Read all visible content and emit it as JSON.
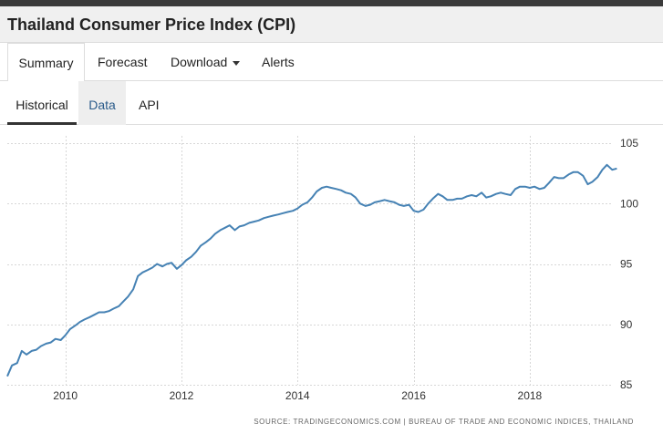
{
  "page": {
    "title": "Thailand Consumer Price Index (CPI)"
  },
  "main_tabs": [
    {
      "label": "Summary",
      "active": true
    },
    {
      "label": "Forecast",
      "active": false
    },
    {
      "label": "Download",
      "active": false,
      "dropdown": true
    },
    {
      "label": "Alerts",
      "active": false
    }
  ],
  "sub_tabs": [
    {
      "label": "Historical",
      "active": true
    },
    {
      "label": "Data",
      "active": false
    },
    {
      "label": "API",
      "active": false
    }
  ],
  "colors": {
    "line": "#4682b4",
    "grid": "#d7d7d7",
    "axis_text": "#333333",
    "source_text": "#666666"
  },
  "chart_data": {
    "type": "line",
    "title": "",
    "xlabel": "",
    "ylabel": "",
    "xlim": [
      2009.0,
      2019.4
    ],
    "ylim": [
      85,
      105
    ],
    "x_ticks": [
      2010,
      2012,
      2014,
      2016,
      2018
    ],
    "x_tick_labels": [
      "2010",
      "2012",
      "2014",
      "2016",
      "2018"
    ],
    "y_ticks": [
      85,
      90,
      95,
      100,
      105
    ],
    "y_tick_labels": [
      "85",
      "90",
      "95",
      "100",
      "105"
    ],
    "legend": "none",
    "source": "SOURCE: TRADINGECONOMICS.COM | BUREAU OF TRADE AND ECONOMIC INDICES, THAILAND",
    "series": [
      {
        "name": "CPI",
        "points": [
          [
            2009.0,
            85.7
          ],
          [
            2009.08,
            86.6
          ],
          [
            2009.17,
            86.8
          ],
          [
            2009.25,
            87.8
          ],
          [
            2009.33,
            87.5
          ],
          [
            2009.42,
            87.8
          ],
          [
            2009.5,
            87.9
          ],
          [
            2009.58,
            88.2
          ],
          [
            2009.67,
            88.4
          ],
          [
            2009.75,
            88.5
          ],
          [
            2009.83,
            88.8
          ],
          [
            2009.92,
            88.7
          ],
          [
            2010.0,
            89.1
          ],
          [
            2010.08,
            89.6
          ],
          [
            2010.17,
            89.9
          ],
          [
            2010.25,
            90.2
          ],
          [
            2010.33,
            90.4
          ],
          [
            2010.42,
            90.6
          ],
          [
            2010.5,
            90.8
          ],
          [
            2010.58,
            91.0
          ],
          [
            2010.67,
            91.0
          ],
          [
            2010.75,
            91.1
          ],
          [
            2010.83,
            91.3
          ],
          [
            2010.92,
            91.5
          ],
          [
            2011.0,
            91.9
          ],
          [
            2011.08,
            92.3
          ],
          [
            2011.17,
            92.9
          ],
          [
            2011.25,
            94.0
          ],
          [
            2011.33,
            94.3
          ],
          [
            2011.42,
            94.5
          ],
          [
            2011.5,
            94.7
          ],
          [
            2011.58,
            95.0
          ],
          [
            2011.67,
            94.8
          ],
          [
            2011.75,
            95.0
          ],
          [
            2011.83,
            95.1
          ],
          [
            2011.92,
            94.6
          ],
          [
            2012.0,
            94.9
          ],
          [
            2012.08,
            95.3
          ],
          [
            2012.17,
            95.6
          ],
          [
            2012.25,
            96.0
          ],
          [
            2012.33,
            96.5
          ],
          [
            2012.42,
            96.8
          ],
          [
            2012.5,
            97.1
          ],
          [
            2012.58,
            97.5
          ],
          [
            2012.67,
            97.8
          ],
          [
            2012.75,
            98.0
          ],
          [
            2012.83,
            98.2
          ],
          [
            2012.92,
            97.8
          ],
          [
            2013.0,
            98.1
          ],
          [
            2013.08,
            98.2
          ],
          [
            2013.17,
            98.4
          ],
          [
            2013.25,
            98.5
          ],
          [
            2013.33,
            98.6
          ],
          [
            2013.42,
            98.8
          ],
          [
            2013.5,
            98.9
          ],
          [
            2013.58,
            99.0
          ],
          [
            2013.67,
            99.1
          ],
          [
            2013.75,
            99.2
          ],
          [
            2013.83,
            99.3
          ],
          [
            2013.92,
            99.4
          ],
          [
            2014.0,
            99.6
          ],
          [
            2014.08,
            99.9
          ],
          [
            2014.17,
            100.1
          ],
          [
            2014.25,
            100.5
          ],
          [
            2014.33,
            101.0
          ],
          [
            2014.42,
            101.3
          ],
          [
            2014.5,
            101.4
          ],
          [
            2014.58,
            101.3
          ],
          [
            2014.67,
            101.2
          ],
          [
            2014.75,
            101.1
          ],
          [
            2014.83,
            100.9
          ],
          [
            2014.92,
            100.8
          ],
          [
            2015.0,
            100.5
          ],
          [
            2015.08,
            100.0
          ],
          [
            2015.17,
            99.8
          ],
          [
            2015.25,
            99.9
          ],
          [
            2015.33,
            100.1
          ],
          [
            2015.42,
            100.2
          ],
          [
            2015.5,
            100.3
          ],
          [
            2015.58,
            100.2
          ],
          [
            2015.67,
            100.1
          ],
          [
            2015.75,
            99.9
          ],
          [
            2015.83,
            99.8
          ],
          [
            2015.92,
            99.9
          ],
          [
            2016.0,
            99.4
          ],
          [
            2016.08,
            99.3
          ],
          [
            2016.17,
            99.5
          ],
          [
            2016.25,
            100.0
          ],
          [
            2016.33,
            100.4
          ],
          [
            2016.42,
            100.8
          ],
          [
            2016.5,
            100.6
          ],
          [
            2016.58,
            100.3
          ],
          [
            2016.67,
            100.3
          ],
          [
            2016.75,
            100.4
          ],
          [
            2016.83,
            100.4
          ],
          [
            2016.92,
            100.6
          ],
          [
            2017.0,
            100.7
          ],
          [
            2017.08,
            100.6
          ],
          [
            2017.17,
            100.9
          ],
          [
            2017.25,
            100.5
          ],
          [
            2017.33,
            100.6
          ],
          [
            2017.42,
            100.8
          ],
          [
            2017.5,
            100.9
          ],
          [
            2017.58,
            100.8
          ],
          [
            2017.67,
            100.7
          ],
          [
            2017.75,
            101.2
          ],
          [
            2017.83,
            101.4
          ],
          [
            2017.92,
            101.4
          ],
          [
            2018.0,
            101.3
          ],
          [
            2018.08,
            101.4
          ],
          [
            2018.17,
            101.2
          ],
          [
            2018.25,
            101.3
          ],
          [
            2018.33,
            101.7
          ],
          [
            2018.42,
            102.2
          ],
          [
            2018.5,
            102.1
          ],
          [
            2018.58,
            102.1
          ],
          [
            2018.67,
            102.4
          ],
          [
            2018.75,
            102.6
          ],
          [
            2018.83,
            102.6
          ],
          [
            2018.92,
            102.3
          ],
          [
            2019.0,
            101.6
          ],
          [
            2019.08,
            101.8
          ],
          [
            2019.17,
            102.2
          ],
          [
            2019.25,
            102.8
          ],
          [
            2019.33,
            103.2
          ],
          [
            2019.42,
            102.8
          ],
          [
            2019.5,
            102.9
          ]
        ]
      }
    ]
  }
}
